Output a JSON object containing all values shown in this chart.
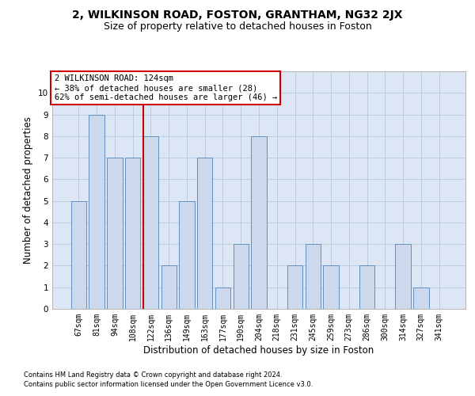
{
  "title": "2, WILKINSON ROAD, FOSTON, GRANTHAM, NG32 2JX",
  "subtitle": "Size of property relative to detached houses in Foston",
  "xlabel": "Distribution of detached houses by size in Foston",
  "ylabel": "Number of detached properties",
  "categories": [
    "67sqm",
    "81sqm",
    "94sqm",
    "108sqm",
    "122sqm",
    "136sqm",
    "149sqm",
    "163sqm",
    "177sqm",
    "190sqm",
    "204sqm",
    "218sqm",
    "231sqm",
    "245sqm",
    "259sqm",
    "273sqm",
    "286sqm",
    "300sqm",
    "314sqm",
    "327sqm",
    "341sqm"
  ],
  "values": [
    5,
    9,
    7,
    7,
    8,
    2,
    5,
    7,
    1,
    3,
    8,
    0,
    2,
    3,
    2,
    0,
    2,
    0,
    3,
    1,
    0
  ],
  "bar_color": "#ccd9ed",
  "bar_edge_color": "#6090c0",
  "vline_index": 4,
  "annotation_line1": "2 WILKINSON ROAD: 124sqm",
  "annotation_line2": "← 38% of detached houses are smaller (28)",
  "annotation_line3": "62% of semi-detached houses are larger (46) →",
  "annotation_box_facecolor": "#ffffff",
  "annotation_box_edgecolor": "#cc0000",
  "vline_color": "#cc0000",
  "ylim_max": 11,
  "grid_color": "#bbccdd",
  "bg_color": "#dce6f5",
  "footer_line1": "Contains HM Land Registry data © Crown copyright and database right 2024.",
  "footer_line2": "Contains public sector information licensed under the Open Government Licence v3.0.",
  "title_fontsize": 10,
  "subtitle_fontsize": 9,
  "tick_fontsize": 7,
  "ylabel_fontsize": 8.5,
  "xlabel_fontsize": 8.5,
  "annotation_fontsize": 7.5,
  "footer_fontsize": 6
}
